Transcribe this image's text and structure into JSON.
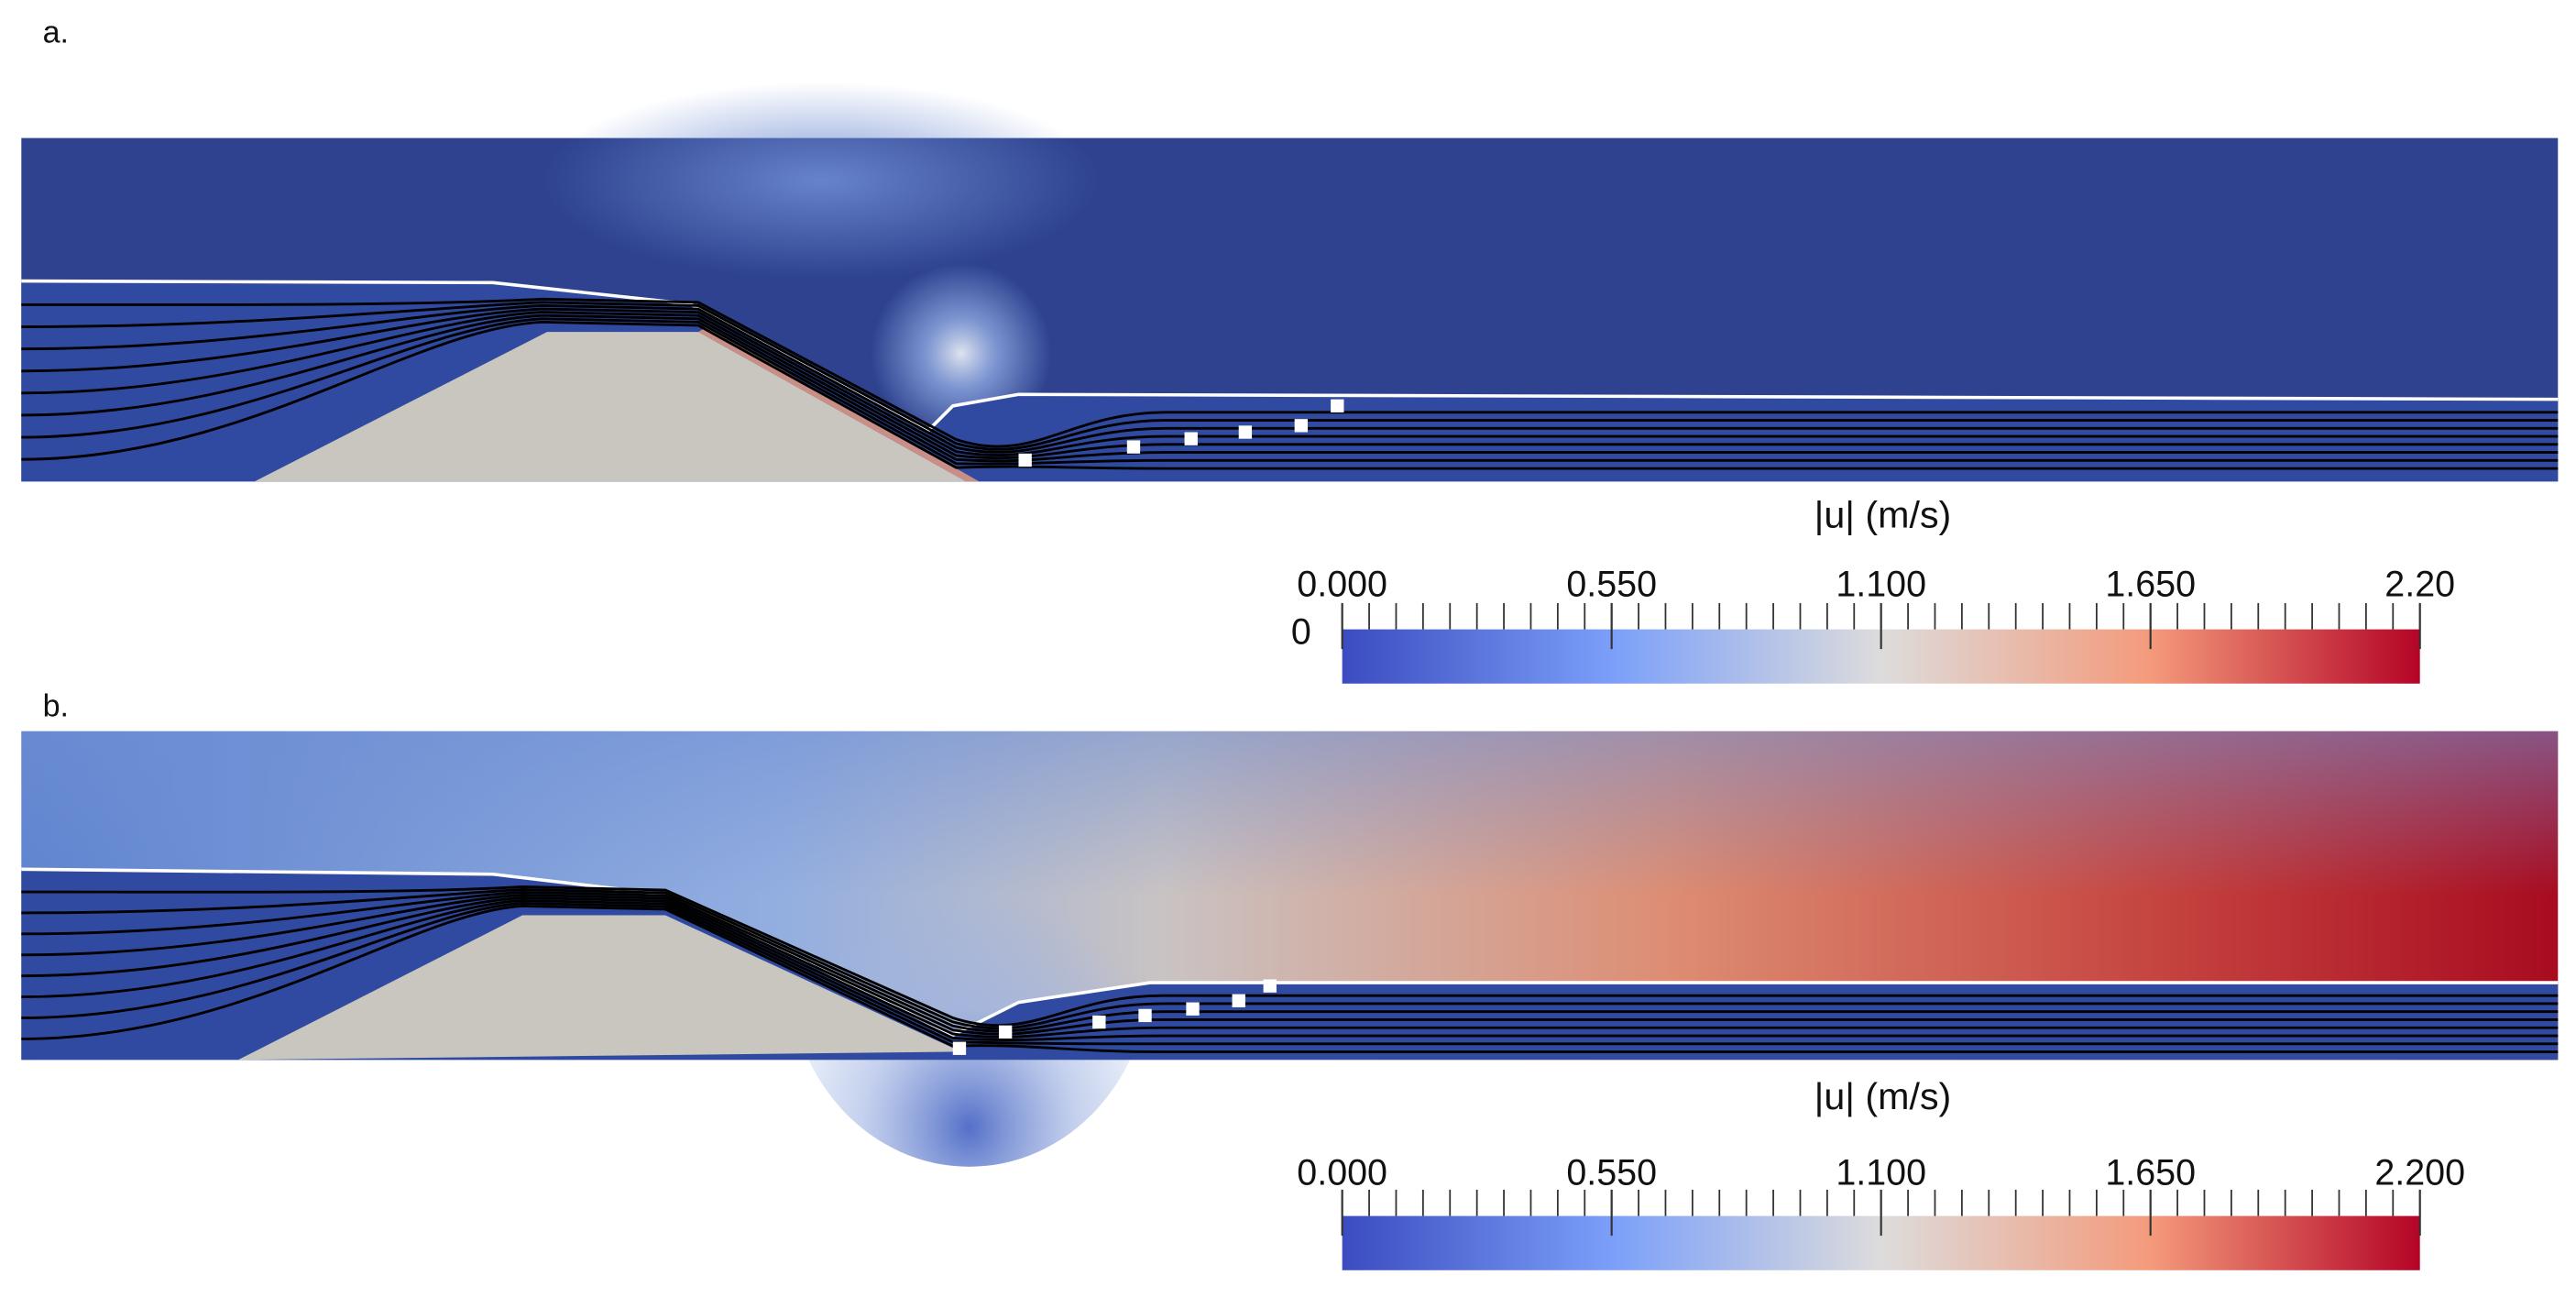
{
  "panels": [
    {
      "label": "a.",
      "colorbar": {
        "title": "|u| (m/s)",
        "range": [
          0,
          2.2
        ],
        "extra_label": "0",
        "ticks": [
          {
            "value": 0,
            "label": "0.000"
          },
          {
            "value": 0.55,
            "label": "0.550"
          },
          {
            "value": 1.1,
            "label": "1.100"
          },
          {
            "value": 1.65,
            "label": "1.650"
          },
          {
            "value": 2.2,
            "label": "2.20"
          }
        ]
      }
    },
    {
      "label": "b.",
      "colorbar": {
        "title": "|u| (m/s)",
        "range": [
          0,
          2.2
        ],
        "ticks": [
          {
            "value": 0,
            "label": "0.000"
          },
          {
            "value": 0.55,
            "label": "0.550"
          },
          {
            "value": 1.1,
            "label": "1.100"
          },
          {
            "value": 1.65,
            "label": "1.650"
          },
          {
            "value": 2.2,
            "label": "2.200"
          }
        ]
      }
    }
  ]
}
